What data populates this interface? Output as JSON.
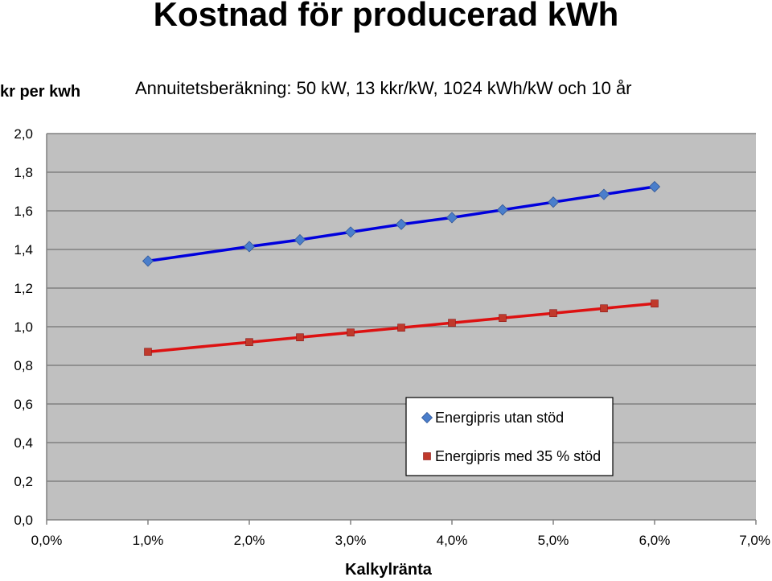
{
  "chart_data": {
    "type": "line",
    "title": "Kostnad för producerad kWh",
    "subtitle": "Annuitetsberäkning: 50 kW, 13 kkr/kW, 1024 kWh/kW och 10 år",
    "ylabel": "kr per kwh",
    "xlabel": "Kalkylränta",
    "xlim": [
      0,
      7
    ],
    "ylim": [
      0,
      2
    ],
    "x_ticks": [
      "0,0%",
      "1,0%",
      "2,0%",
      "3,0%",
      "4,0%",
      "5,0%",
      "6,0%",
      "7,0%"
    ],
    "y_ticks": [
      "0,0",
      "0,2",
      "0,4",
      "0,6",
      "0,8",
      "1,0",
      "1,2",
      "1,4",
      "1,6",
      "1,8",
      "2,0"
    ],
    "x": [
      1.0,
      2.0,
      2.5,
      3.0,
      3.5,
      4.0,
      4.5,
      5.0,
      5.5,
      6.0
    ],
    "series": [
      {
        "name": "Energipris utan stöd",
        "color": "#0000dd",
        "marker_color": "#4a7ecb",
        "marker": "diamond",
        "values": [
          1.34,
          1.415,
          1.45,
          1.49,
          1.53,
          1.565,
          1.605,
          1.645,
          1.685,
          1.725
        ]
      },
      {
        "name": "Energipris med 35 % stöd",
        "color": "#dd1111",
        "marker_color": "#c0392b",
        "marker": "square",
        "values": [
          0.87,
          0.92,
          0.945,
          0.97,
          0.995,
          1.02,
          1.045,
          1.07,
          1.095,
          1.12
        ]
      }
    ],
    "grid": "horizontal",
    "legend_position": "bottom-right",
    "plot_background": "#c0c0c0"
  }
}
